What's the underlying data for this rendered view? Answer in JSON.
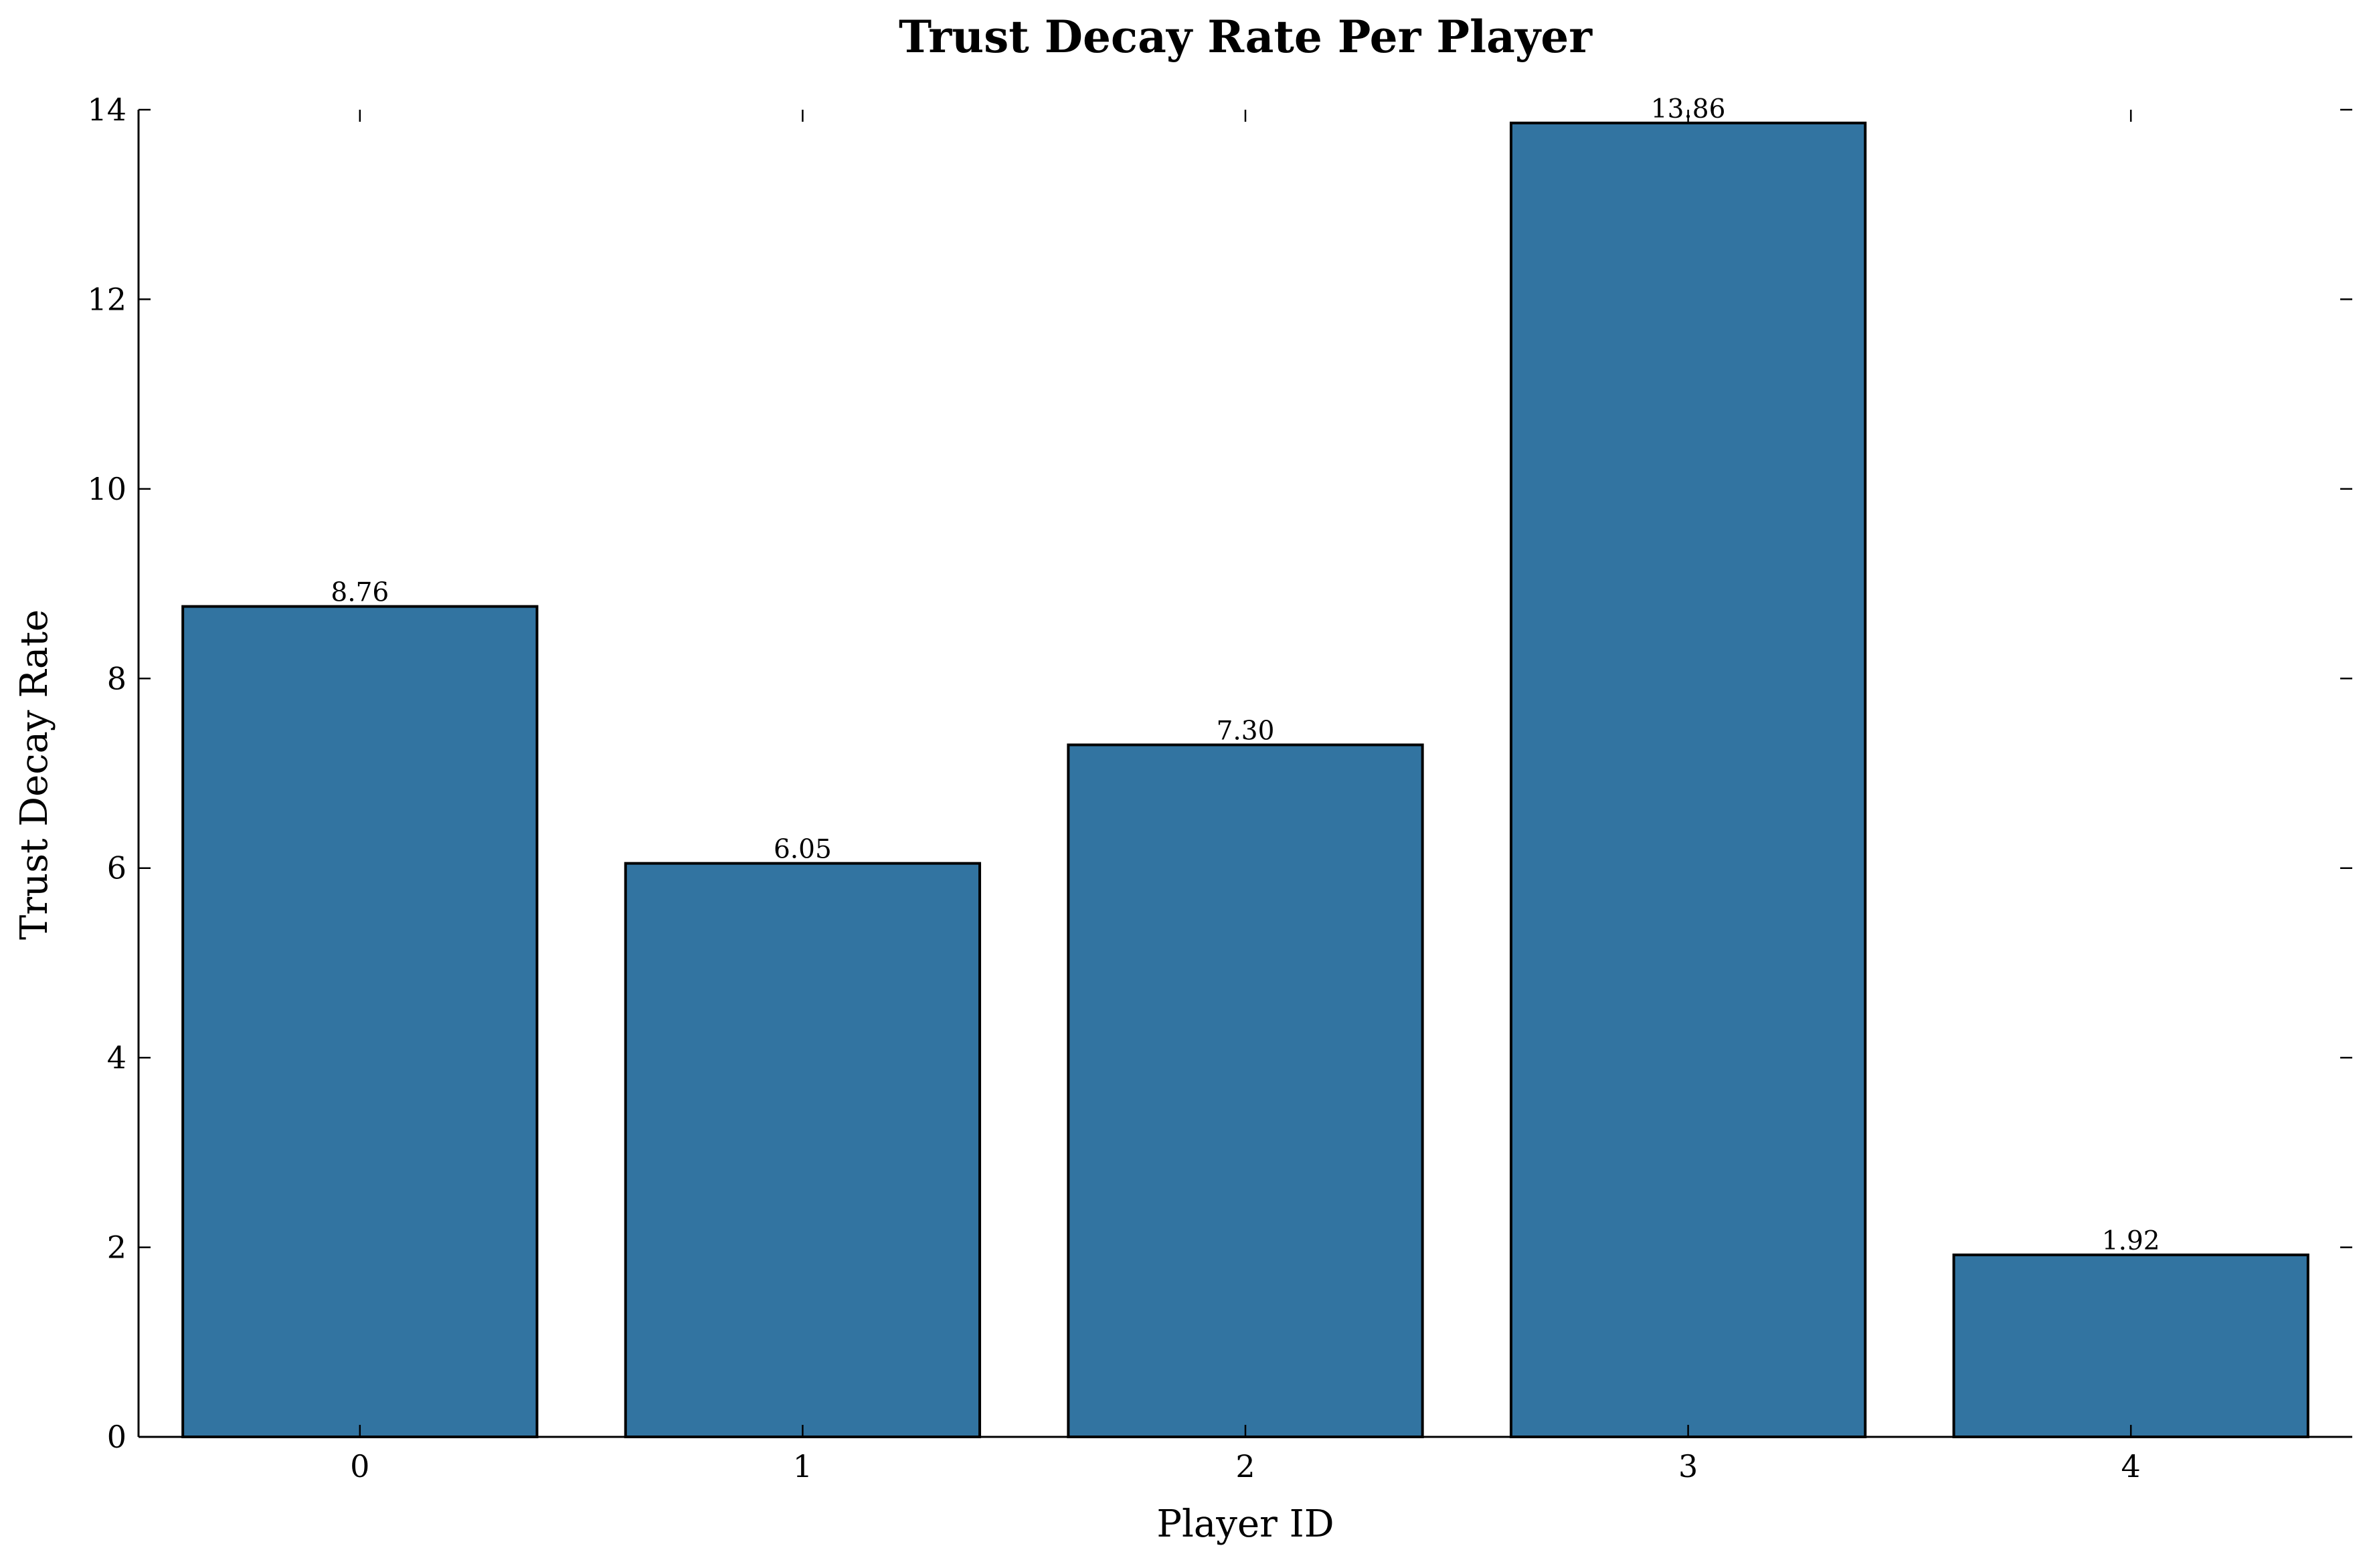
{
  "chart_data": {
    "type": "bar",
    "title": "Trust Decay Rate Per Player",
    "xlabel": "Player ID",
    "ylabel": "Trust Decay Rate",
    "categories": [
      "0",
      "1",
      "2",
      "3",
      "4"
    ],
    "values": [
      8.76,
      6.05,
      7.3,
      13.86,
      1.92
    ],
    "value_labels": [
      "8.76",
      "6.05",
      "7.30",
      "13.86",
      "1.92"
    ],
    "y_ticks": [
      0,
      2,
      4,
      6,
      8,
      10,
      12,
      14
    ],
    "ylim": [
      0,
      14
    ],
    "grid": false,
    "legend": "none",
    "colors": {
      "bar_fill": "#3274a1",
      "bar_edge": "#000000",
      "axis": "#000000",
      "background": "#ffffff"
    }
  }
}
